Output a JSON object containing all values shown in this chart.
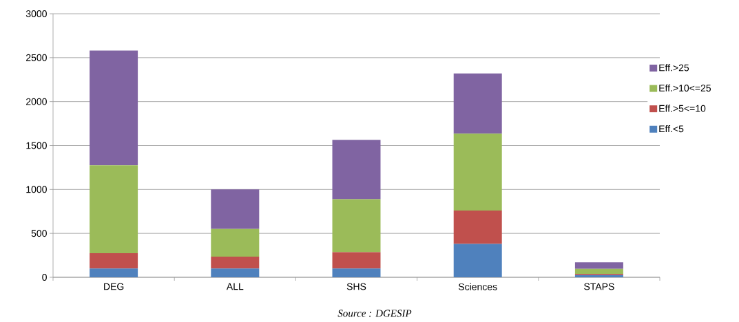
{
  "chart_data": {
    "type": "bar",
    "stacked": true,
    "categories": [
      "DEG",
      "ALL",
      "SHS",
      "Sciences",
      "STAPS"
    ],
    "series": [
      {
        "name": "Eff.<5",
        "color": "#4f81bd",
        "values": [
          100,
          100,
          100,
          380,
          25
        ]
      },
      {
        "name": "Eff.>5<=10",
        "color": "#c0504d",
        "values": [
          175,
          135,
          185,
          380,
          15
        ]
      },
      {
        "name": "Eff.>10<=25",
        "color": "#9bbb59",
        "values": [
          1000,
          315,
          605,
          875,
          55
        ]
      },
      {
        "name": "Eff.>25",
        "color": "#8064a2",
        "values": [
          1305,
          450,
          675,
          685,
          75
        ]
      }
    ],
    "ylim": [
      0,
      3000
    ],
    "yticks": [
      0,
      500,
      1000,
      1500,
      2000,
      2500,
      3000
    ],
    "grid": "y",
    "legend": "right",
    "annotations": [
      "Source : DGESIP"
    ]
  }
}
